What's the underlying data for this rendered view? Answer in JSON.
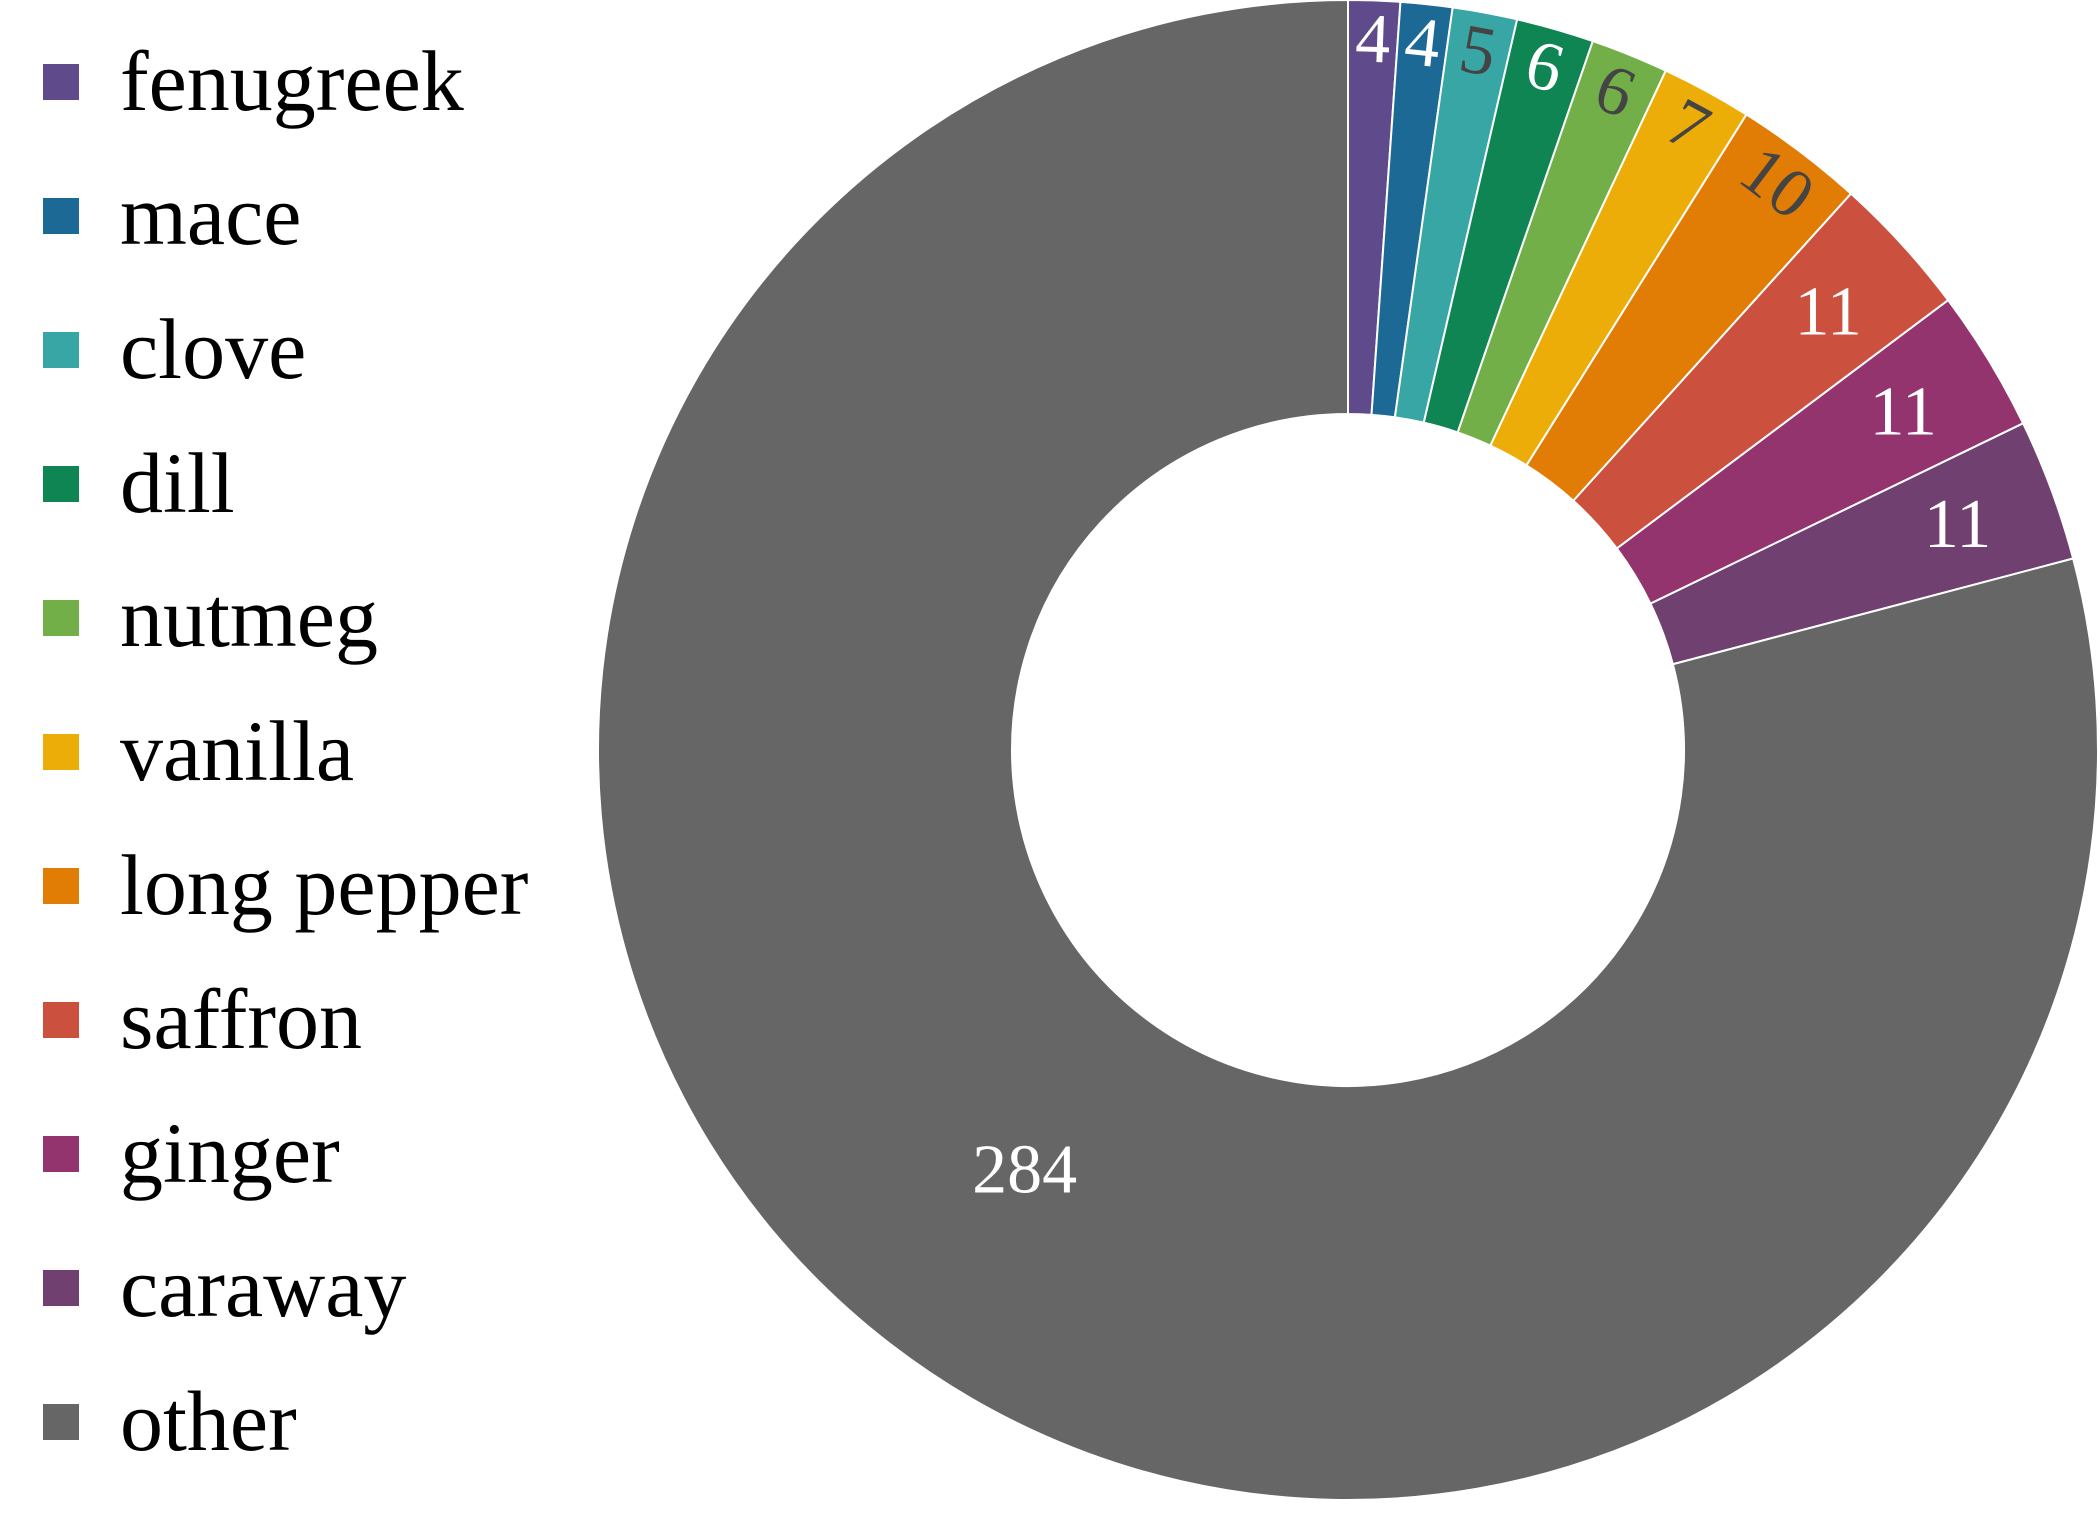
{
  "chart_data": {
    "type": "pie",
    "title": "",
    "categories": [
      "fenugreek",
      "mace",
      "clove",
      "dill",
      "nutmeg",
      "vanilla",
      "long pepper",
      "saffron",
      "ginger",
      "caraway",
      "other"
    ],
    "values": [
      4,
      4,
      5,
      6,
      6,
      7,
      10,
      11,
      11,
      11,
      284
    ],
    "value_labels": [
      "4",
      "4",
      "5",
      "6",
      "6",
      "7",
      "10",
      "11",
      "11",
      "11",
      "284"
    ],
    "colors": [
      "#5f4b8b",
      "#1d6996",
      "#38a6a5",
      "#0f8554",
      "#73af48",
      "#edad08",
      "#e17c05",
      "#cc503e",
      "#94346e",
      "#6f4070",
      "#666666"
    ],
    "label_colors": [
      "#ffffff",
      "#ffffff",
      "#444444",
      "#ffffff",
      "#444444",
      "#444444",
      "#444444",
      "#ffffff",
      "#ffffff",
      "#ffffff",
      "#ffffff"
    ],
    "donut": true,
    "start_angle": "12 o'clock",
    "direction": "clockwise",
    "legend_position": "left"
  }
}
